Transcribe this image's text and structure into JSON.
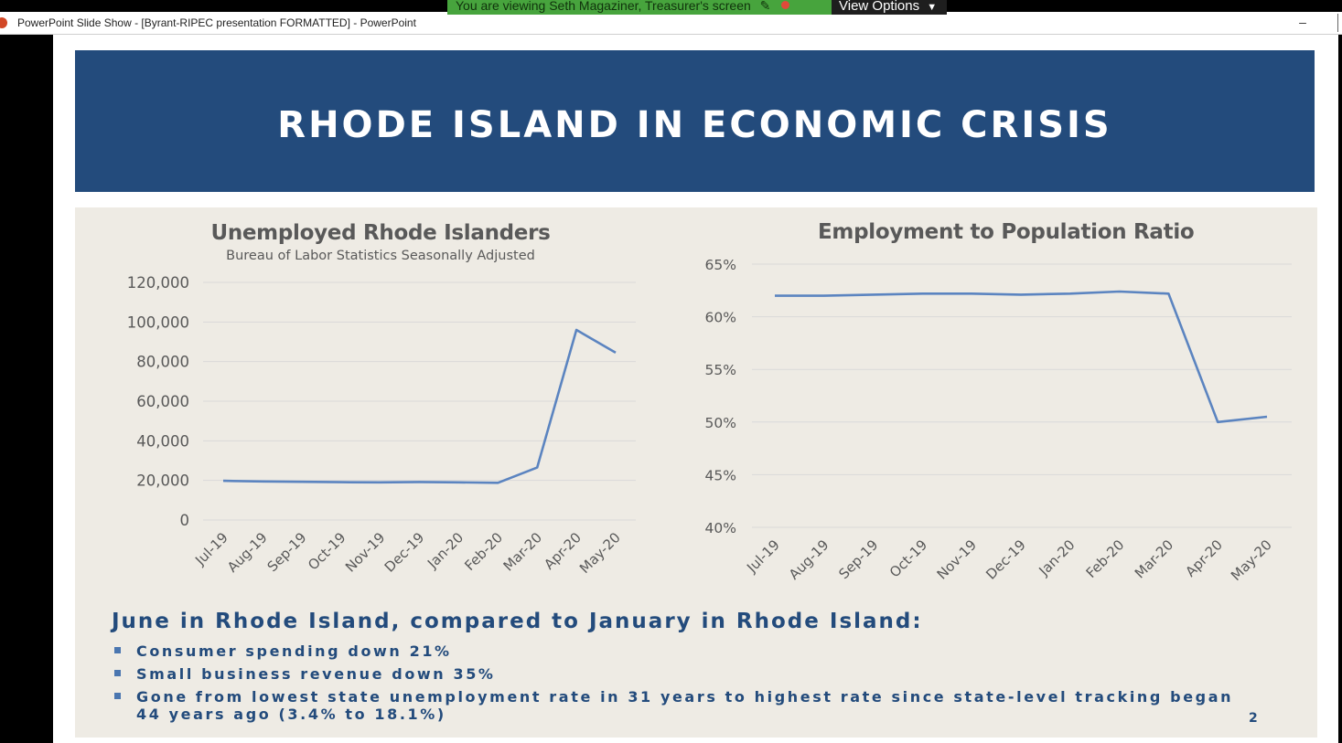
{
  "share_banner": {
    "message": "You are viewing Seth Magaziner, Treasurer's screen",
    "view_options_label": "View Options",
    "colors": {
      "banner": "#47a43d",
      "view_options": "#1e1e1e"
    }
  },
  "window": {
    "title": "PowerPoint Slide Show - [Byrant-RIPEC presentation FORMATTED] - PowerPoint",
    "minimize_glyph": "–",
    "icon": "powerpoint-icon"
  },
  "slide": {
    "title": "RHODE ISLAND IN ECONOMIC CRISIS",
    "summary_heading": "June in Rhode Island, compared to January in Rhode Island:",
    "bullets": [
      "Consumer spending down 21%",
      "Small business revenue down 35%",
      "Gone from lowest state unemployment rate in 31 years to highest rate since state-level tracking began 44 years ago (3.4% to 18.1%)"
    ],
    "page_number": "2",
    "colors": {
      "header": "#234b7c",
      "panel": "#eeebe4",
      "line": "#5b84c0"
    }
  },
  "chart_data": [
    {
      "type": "line",
      "title": "Unemployed Rhode Islanders",
      "subtitle": "Bureau of Labor Statistics Seasonally Adjusted",
      "categories": [
        "Jul-19",
        "Aug-19",
        "Sep-19",
        "Oct-19",
        "Nov-19",
        "Dec-19",
        "Jan-20",
        "Feb-20",
        "Mar-20",
        "Apr-20",
        "May-20"
      ],
      "values": [
        19800,
        19500,
        19300,
        19100,
        19000,
        19200,
        19000,
        18800,
        26500,
        96000,
        84500
      ],
      "ylim": [
        0,
        120000
      ],
      "yticks": [
        "0",
        "20,000",
        "40,000",
        "60,000",
        "80,000",
        "100,000",
        "120,000"
      ],
      "grid": true
    },
    {
      "type": "line",
      "title": "Employment to Population Ratio",
      "categories": [
        "Jul-19",
        "Aug-19",
        "Sep-19",
        "Oct-19",
        "Nov-19",
        "Dec-19",
        "Jan-20",
        "Feb-20",
        "Mar-20",
        "Apr-20",
        "May-20"
      ],
      "values": [
        62.0,
        62.0,
        62.1,
        62.2,
        62.2,
        62.1,
        62.2,
        62.4,
        62.2,
        50.0,
        50.5
      ],
      "ylim": [
        40,
        65
      ],
      "yticks": [
        "40%",
        "45%",
        "50%",
        "55%",
        "60%",
        "65%"
      ],
      "grid": true
    }
  ]
}
